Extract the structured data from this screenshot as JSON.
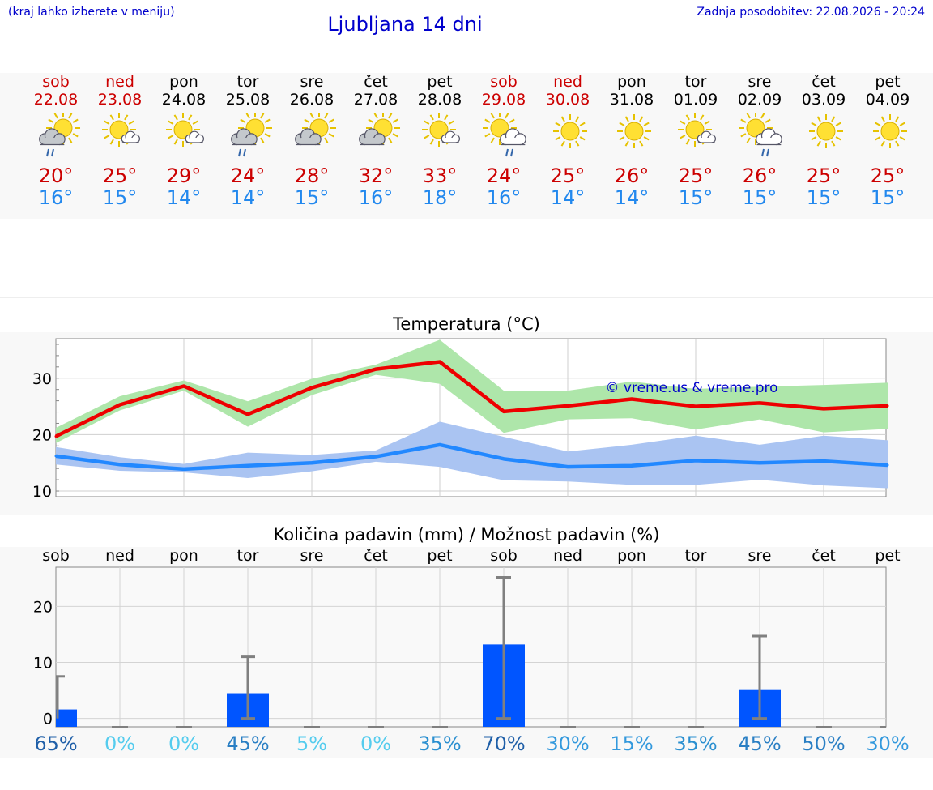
{
  "header": {
    "hint": "(kraj lahko izberete v meniju)",
    "title": "Ljubljana 14 dni",
    "updated": "Zadnja posodobitev: 22.08.2026 - 20:24"
  },
  "days": [
    {
      "name": "sob",
      "date": "22.08",
      "weekend": true,
      "icon": "sun-cloud-rain-icon",
      "max": "20°",
      "min": "16°"
    },
    {
      "name": "ned",
      "date": "23.08",
      "weekend": true,
      "icon": "sun-small-cloud-icon",
      "max": "25°",
      "min": "15°"
    },
    {
      "name": "pon",
      "date": "24.08",
      "weekend": false,
      "icon": "sun-small-cloud-icon",
      "max": "29°",
      "min": "14°"
    },
    {
      "name": "tor",
      "date": "25.08",
      "weekend": false,
      "icon": "sun-cloud-rain-icon",
      "max": "24°",
      "min": "14°"
    },
    {
      "name": "sre",
      "date": "26.08",
      "weekend": false,
      "icon": "sun-cloud-icon",
      "max": "28°",
      "min": "15°"
    },
    {
      "name": "čet",
      "date": "27.08",
      "weekend": false,
      "icon": "sun-cloud-icon",
      "max": "32°",
      "min": "16°"
    },
    {
      "name": "pet",
      "date": "28.08",
      "weekend": false,
      "icon": "sun-small-cloud-icon",
      "max": "33°",
      "min": "18°"
    },
    {
      "name": "sob",
      "date": "29.08",
      "weekend": true,
      "icon": "sun-big-cloud-rain-icon",
      "max": "24°",
      "min": "16°"
    },
    {
      "name": "ned",
      "date": "30.08",
      "weekend": true,
      "icon": "sun-icon",
      "max": "25°",
      "min": "14°"
    },
    {
      "name": "pon",
      "date": "31.08",
      "weekend": false,
      "icon": "sun-icon",
      "max": "26°",
      "min": "14°"
    },
    {
      "name": "tor",
      "date": "01.09",
      "weekend": false,
      "icon": "sun-small-cloud-icon",
      "max": "25°",
      "min": "15°"
    },
    {
      "name": "sre",
      "date": "02.09",
      "weekend": false,
      "icon": "sun-big-cloud-rain-icon",
      "max": "26°",
      "min": "15°"
    },
    {
      "name": "čet",
      "date": "03.09",
      "weekend": false,
      "icon": "sun-icon",
      "max": "25°",
      "min": "15°"
    },
    {
      "name": "pet",
      "date": "04.09",
      "weekend": false,
      "icon": "sun-icon",
      "max": "25°",
      "min": "15°"
    }
  ],
  "colors": {
    "accent": "#0000cc",
    "weekend": "#cc0000",
    "tmax": "#cc0000",
    "tmin": "#2288ee",
    "max_line": "#ee0000",
    "max_band": "#aee6aa",
    "min_line": "#2288ff",
    "min_band": "#aac4f2",
    "precip_bar": "#0055ff",
    "errbar": "#808080"
  },
  "chart_data": [
    {
      "type": "line",
      "title": "Temperatura (°C)",
      "watermark": "© vreme.us & vreme.pro",
      "ylim": [
        9,
        37
      ],
      "yticks": [
        10,
        20,
        30
      ],
      "grid": true,
      "series": [
        {
          "key": "max",
          "values": [
            19.7,
            25.3,
            28.6,
            23.6,
            28.3,
            31.6,
            32.9,
            24.1,
            25.1,
            26.3,
            25.0,
            25.6,
            24.6,
            25.1
          ],
          "low": [
            18.5,
            24.3,
            27.8,
            21.4,
            27.0,
            30.6,
            29.0,
            20.3,
            22.7,
            22.9,
            20.9,
            22.7,
            20.4,
            21.0
          ],
          "high": [
            21.2,
            26.8,
            29.6,
            25.9,
            29.9,
            32.4,
            36.8,
            27.8,
            27.8,
            29.4,
            28.1,
            28.5,
            28.8,
            29.2
          ]
        },
        {
          "key": "min",
          "values": [
            16.2,
            14.7,
            13.9,
            14.5,
            15.0,
            16.1,
            18.2,
            15.7,
            14.3,
            14.5,
            15.4,
            15.0,
            15.3,
            14.6
          ],
          "low": [
            14.7,
            13.6,
            13.3,
            12.3,
            13.5,
            15.2,
            14.3,
            11.9,
            11.7,
            11.1,
            11.1,
            12.0,
            11.0,
            10.5
          ],
          "high": [
            17.8,
            16.0,
            14.8,
            16.8,
            16.4,
            17.2,
            22.3,
            19.6,
            17.0,
            18.2,
            19.8,
            18.2,
            19.8,
            19.0
          ]
        }
      ]
    },
    {
      "type": "bar",
      "title": "Količina padavin (mm) / Možnost padavin (%)",
      "ylim": [
        -1.5,
        27
      ],
      "yticks": [
        0,
        10,
        20
      ],
      "categories": [
        "sob",
        "ned",
        "pon",
        "tor",
        "sre",
        "čet",
        "pet",
        "sob",
        "ned",
        "pon",
        "tor",
        "sre",
        "čet",
        "pet"
      ],
      "values": [
        1.6,
        0,
        0,
        4.5,
        0,
        0,
        0,
        13.2,
        0,
        0,
        0,
        5.2,
        0,
        0
      ],
      "range_high": [
        7.5,
        0,
        0,
        11.0,
        0,
        0,
        0,
        25.2,
        0,
        0,
        0,
        14.7,
        0,
        0
      ],
      "range_low": [
        0,
        0,
        0,
        0,
        0,
        0,
        0,
        0,
        0,
        0,
        0,
        0,
        0,
        0
      ],
      "chance": [
        "65%",
        "0%",
        "0%",
        "45%",
        "5%",
        "0%",
        "35%",
        "70%",
        "30%",
        "15%",
        "35%",
        "45%",
        "50%",
        "30%"
      ],
      "chance_colors": [
        "#1f5fa8",
        "#55ccee",
        "#55ccee",
        "#2a7fc4",
        "#55ccee",
        "#55ccee",
        "#2a8fd0",
        "#1f5fa8",
        "#3399dd",
        "#3399dd",
        "#2a8fd0",
        "#2a7fc4",
        "#2a7fc4",
        "#3399dd"
      ]
    }
  ]
}
